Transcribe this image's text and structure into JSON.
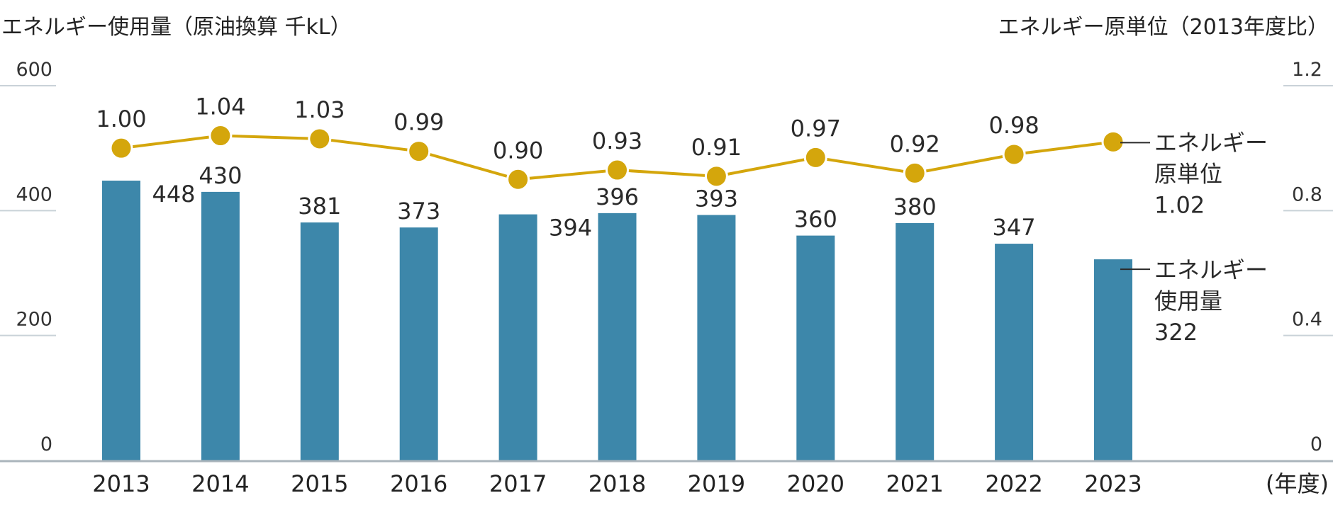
{
  "chart_data": {
    "type": "bar+line",
    "left_axis_title": "エネルギー使用量（原油換算 千kL）",
    "right_axis_title": "エネルギー原単位（2013年度比）",
    "x_unit_label": "(年度)",
    "categories": [
      "2013",
      "2014",
      "2015",
      "2016",
      "2017",
      "2018",
      "2019",
      "2020",
      "2021",
      "2022",
      "2023"
    ],
    "y_left": {
      "min": 0,
      "max": 600,
      "ticks": [
        "0",
        "200",
        "400",
        "600"
      ]
    },
    "y_right": {
      "min": 0,
      "max": 1.2,
      "ticks": [
        "0",
        "0.4",
        "0.8",
        "1.2"
      ]
    },
    "series": [
      {
        "name": "エネルギー使用量",
        "axis": "left",
        "type": "bar",
        "color": "#3d87aa",
        "values": [
          448,
          430,
          381,
          373,
          394,
          396,
          393,
          360,
          380,
          347,
          322
        ],
        "labels": [
          "448",
          "430",
          "381",
          "373",
          "394",
          "396",
          "393",
          "360",
          "380",
          "347",
          "322"
        ]
      },
      {
        "name": "エネルギー原単位",
        "axis": "right",
        "type": "line",
        "color": "#d4a60c",
        "values": [
          1.0,
          1.04,
          1.03,
          0.99,
          0.9,
          0.93,
          0.91,
          0.97,
          0.92,
          0.98,
          1.02
        ],
        "labels": [
          "1.00",
          "1.04",
          "1.03",
          "0.99",
          "0.90",
          "0.93",
          "0.91",
          "0.97",
          "0.92",
          "0.98",
          "1.02"
        ]
      }
    ],
    "legend": [
      {
        "lines": [
          "エネルギー",
          "原単位",
          "1.02"
        ]
      },
      {
        "lines": [
          "エネルギー",
          "使用量",
          "322"
        ]
      }
    ],
    "grid": false
  }
}
